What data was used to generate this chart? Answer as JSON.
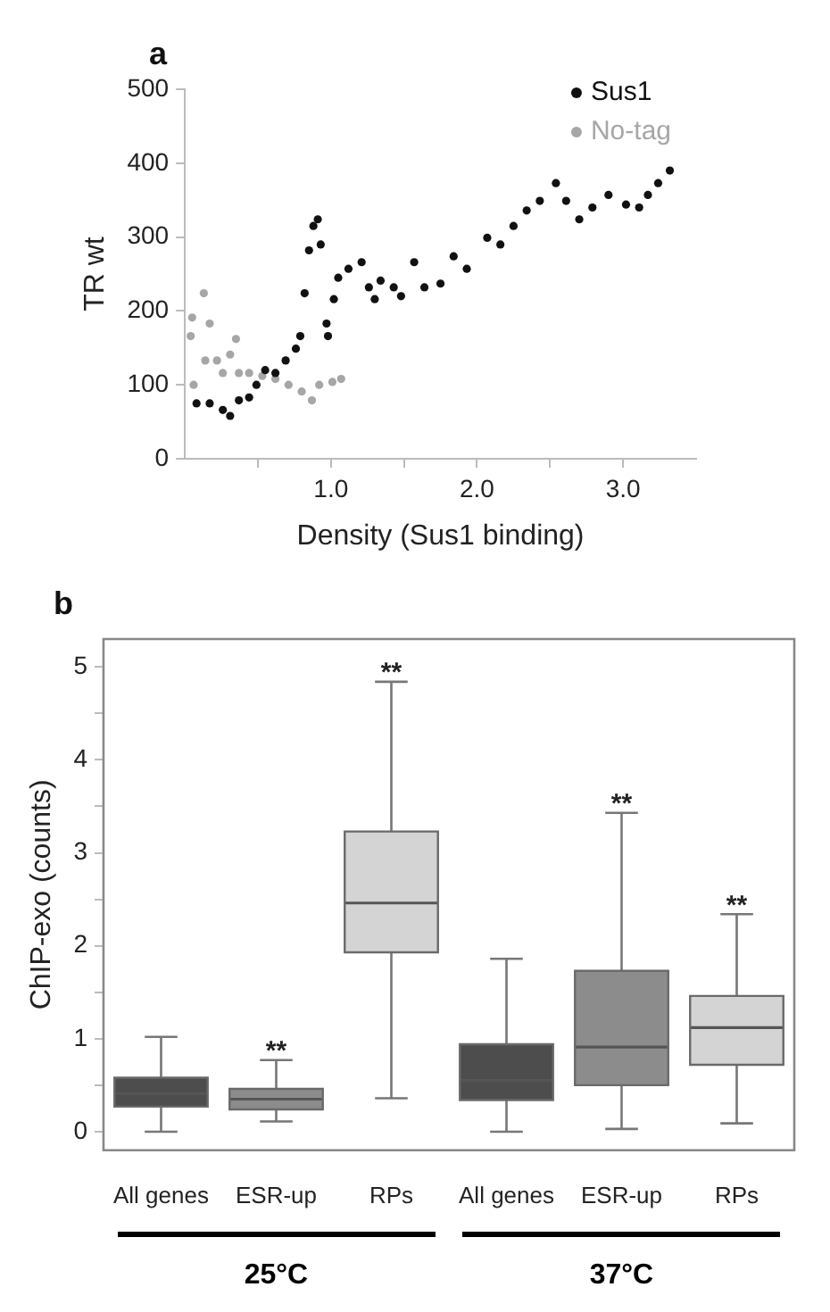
{
  "chart_data": [
    {
      "type": "scatter",
      "title": "a",
      "xlabel": "Density (Sus1 binding)",
      "ylabel": "TR wt",
      "xlim": [
        0,
        3.5
      ],
      "ylim": [
        0,
        500
      ],
      "xticks": [
        {
          "value": 0.5,
          "label": null
        },
        {
          "value": 1,
          "label": "1.0"
        },
        {
          "value": 1.5,
          "label": null
        },
        {
          "value": 2,
          "label": "2.0"
        },
        {
          "value": 2.5,
          "label": null
        },
        {
          "value": 3,
          "label": "3.0"
        }
      ],
      "yticks": [
        0,
        100,
        200,
        300,
        400,
        500
      ],
      "marker": "circle",
      "legend": "top right",
      "series": [
        {
          "name": "Sus1",
          "color": "#111111",
          "x": [
            0.08,
            0.17,
            0.26,
            0.31,
            0.37,
            0.44,
            0.49,
            0.55,
            0.62,
            0.69,
            0.76,
            0.79,
            0.82,
            0.85,
            0.88,
            0.91,
            0.93,
            0.97,
            0.98,
            1.02,
            1.05,
            1.12,
            1.21,
            1.26,
            1.3,
            1.34,
            1.43,
            1.48,
            1.57,
            1.64,
            1.75,
            1.84,
            1.93,
            2.07,
            2.16,
            2.25,
            2.34,
            2.43,
            2.54,
            2.61,
            2.7,
            2.79,
            2.9,
            3.02,
            3.11,
            3.17,
            3.24,
            3.32
          ],
          "values": [
            75,
            75,
            66,
            58,
            79,
            83,
            100,
            120,
            116,
            133,
            149,
            166,
            224,
            282,
            315,
            324,
            290,
            183,
            166,
            216,
            245,
            257,
            266,
            232,
            216,
            241,
            232,
            220,
            266,
            232,
            237,
            274,
            257,
            299,
            290,
            315,
            336,
            349,
            373,
            349,
            324,
            340,
            357,
            344,
            340,
            357,
            373,
            390
          ]
        },
        {
          "name": "No-tag",
          "color": "#a6a6a6",
          "x": [
            0.04,
            0.05,
            0.06,
            0.13,
            0.14,
            0.17,
            0.22,
            0.26,
            0.31,
            0.35,
            0.37,
            0.44,
            0.53,
            0.62,
            0.71,
            0.8,
            0.87,
            0.92,
            1.01,
            1.07
          ],
          "values": [
            166,
            191,
            100,
            224,
            133,
            183,
            133,
            116,
            141,
            162,
            116,
            116,
            112,
            108,
            100,
            91,
            79,
            100,
            104,
            108
          ]
        }
      ]
    },
    {
      "type": "box",
      "title": "b",
      "ylabel": "ChIP-exo (counts)",
      "categories": [
        "All genes",
        "ESR-up",
        "RPs",
        "All genes",
        "ESR-up",
        "RPs"
      ],
      "ylim": [
        -0.2,
        5.3
      ],
      "yticks": [
        0,
        {
          "value": 0.5,
          "label": null
        },
        1,
        {
          "value": 1.5,
          "label": null
        },
        2,
        {
          "value": 2.5,
          "label": null
        },
        3,
        {
          "value": 3.5,
          "label": null
        },
        4,
        {
          "value": 4.5,
          "label": null
        },
        5
      ],
      "colors": [
        "#4d4d4d",
        "#8c8c8c",
        "#d4d4d4",
        "#4d4d4d",
        "#8c8c8c",
        "#d4d4d4"
      ],
      "boxes": [
        {
          "low": 0,
          "q1": 0.27,
          "median": 0.41,
          "q3": 0.58,
          "high": 1.02
        },
        {
          "low": 0.11,
          "q1": 0.24,
          "median": 0.35,
          "q3": 0.46,
          "high": 0.77
        },
        {
          "low": 0.36,
          "q1": 1.93,
          "median": 2.46,
          "q3": 3.23,
          "high": 4.84
        },
        {
          "low": 0,
          "q1": 0.34,
          "median": 0.55,
          "q3": 0.94,
          "high": 1.86
        },
        {
          "low": 0.03,
          "q1": 0.5,
          "median": 0.91,
          "q3": 1.73,
          "high": 3.43
        },
        {
          "low": 0.09,
          "q1": 0.72,
          "median": 1.12,
          "q3": 1.46,
          "high": 2.34
        }
      ],
      "annotations": [
        {
          "text": "**",
          "y": 0.77
        },
        {
          "text": "**",
          "y": 4.84
        },
        {
          "text": "**",
          "y": 3.43
        },
        {
          "text": "**",
          "y": 2.34
        },
        "25°C",
        "37°C"
      ]
    }
  ]
}
